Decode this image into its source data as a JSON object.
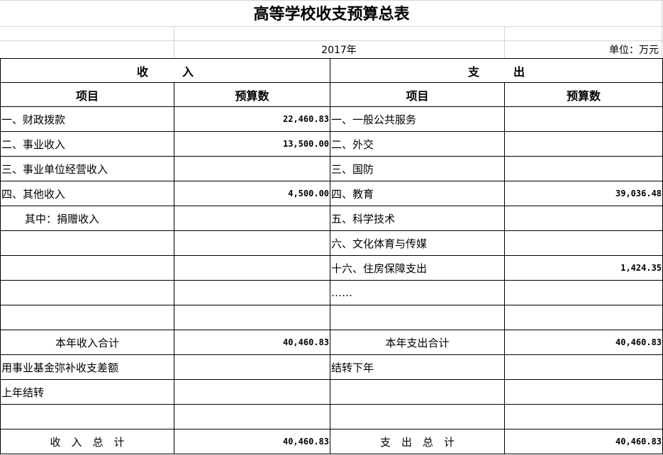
{
  "title": "高等学校收支预算总表",
  "year": "2017年",
  "unit": "单位：万元",
  "income_header": "收　　　入",
  "expense_header": "支　　　出",
  "col_item": "项目",
  "col_budget": "预算数",
  "rows": [
    {
      "in_label": "一、财政拨款",
      "in_value": "22,460.83",
      "out_label": "一、一般公共服务",
      "out_value": ""
    },
    {
      "in_label": "二、事业收入",
      "in_value": "13,500.00",
      "out_label": "二、外交",
      "out_value": ""
    },
    {
      "in_label": "三、事业单位经营收入",
      "in_value": "",
      "out_label": "三、国防",
      "out_value": ""
    },
    {
      "in_label": "四、其他收入",
      "in_value": "4,500.00",
      "out_label": "四、教育",
      "out_value": "39,036.48"
    },
    {
      "in_label": "其中：捐赠收入",
      "in_value": "",
      "out_label": "五、科学技术",
      "out_value": ""
    },
    {
      "in_label": "",
      "in_value": "",
      "out_label": "六、文化体育与传媒",
      "out_value": ""
    },
    {
      "in_label": "",
      "in_value": "",
      "out_label": "十六、住房保障支出",
      "out_value": "1,424.35"
    },
    {
      "in_label": "",
      "in_value": "",
      "out_label": "……",
      "out_value": ""
    },
    {
      "in_label": "",
      "in_value": "",
      "out_label": "",
      "out_value": ""
    },
    {
      "in_label": "本年收入合计",
      "in_value": "40,460.83",
      "out_label": "本年支出合计",
      "out_value": "40,460.83"
    },
    {
      "in_label": "用事业基金弥补收支差额",
      "in_value": "",
      "out_label": "结转下年",
      "out_value": ""
    },
    {
      "in_label": "上年结转",
      "in_value": "",
      "out_label": "",
      "out_value": ""
    },
    {
      "in_label": "",
      "in_value": "",
      "out_label": "",
      "out_value": ""
    },
    {
      "in_label": "收　入　总　计",
      "in_value": "40,460.83",
      "out_label": "支　出　总　计",
      "out_value": "40,460.83"
    }
  ]
}
